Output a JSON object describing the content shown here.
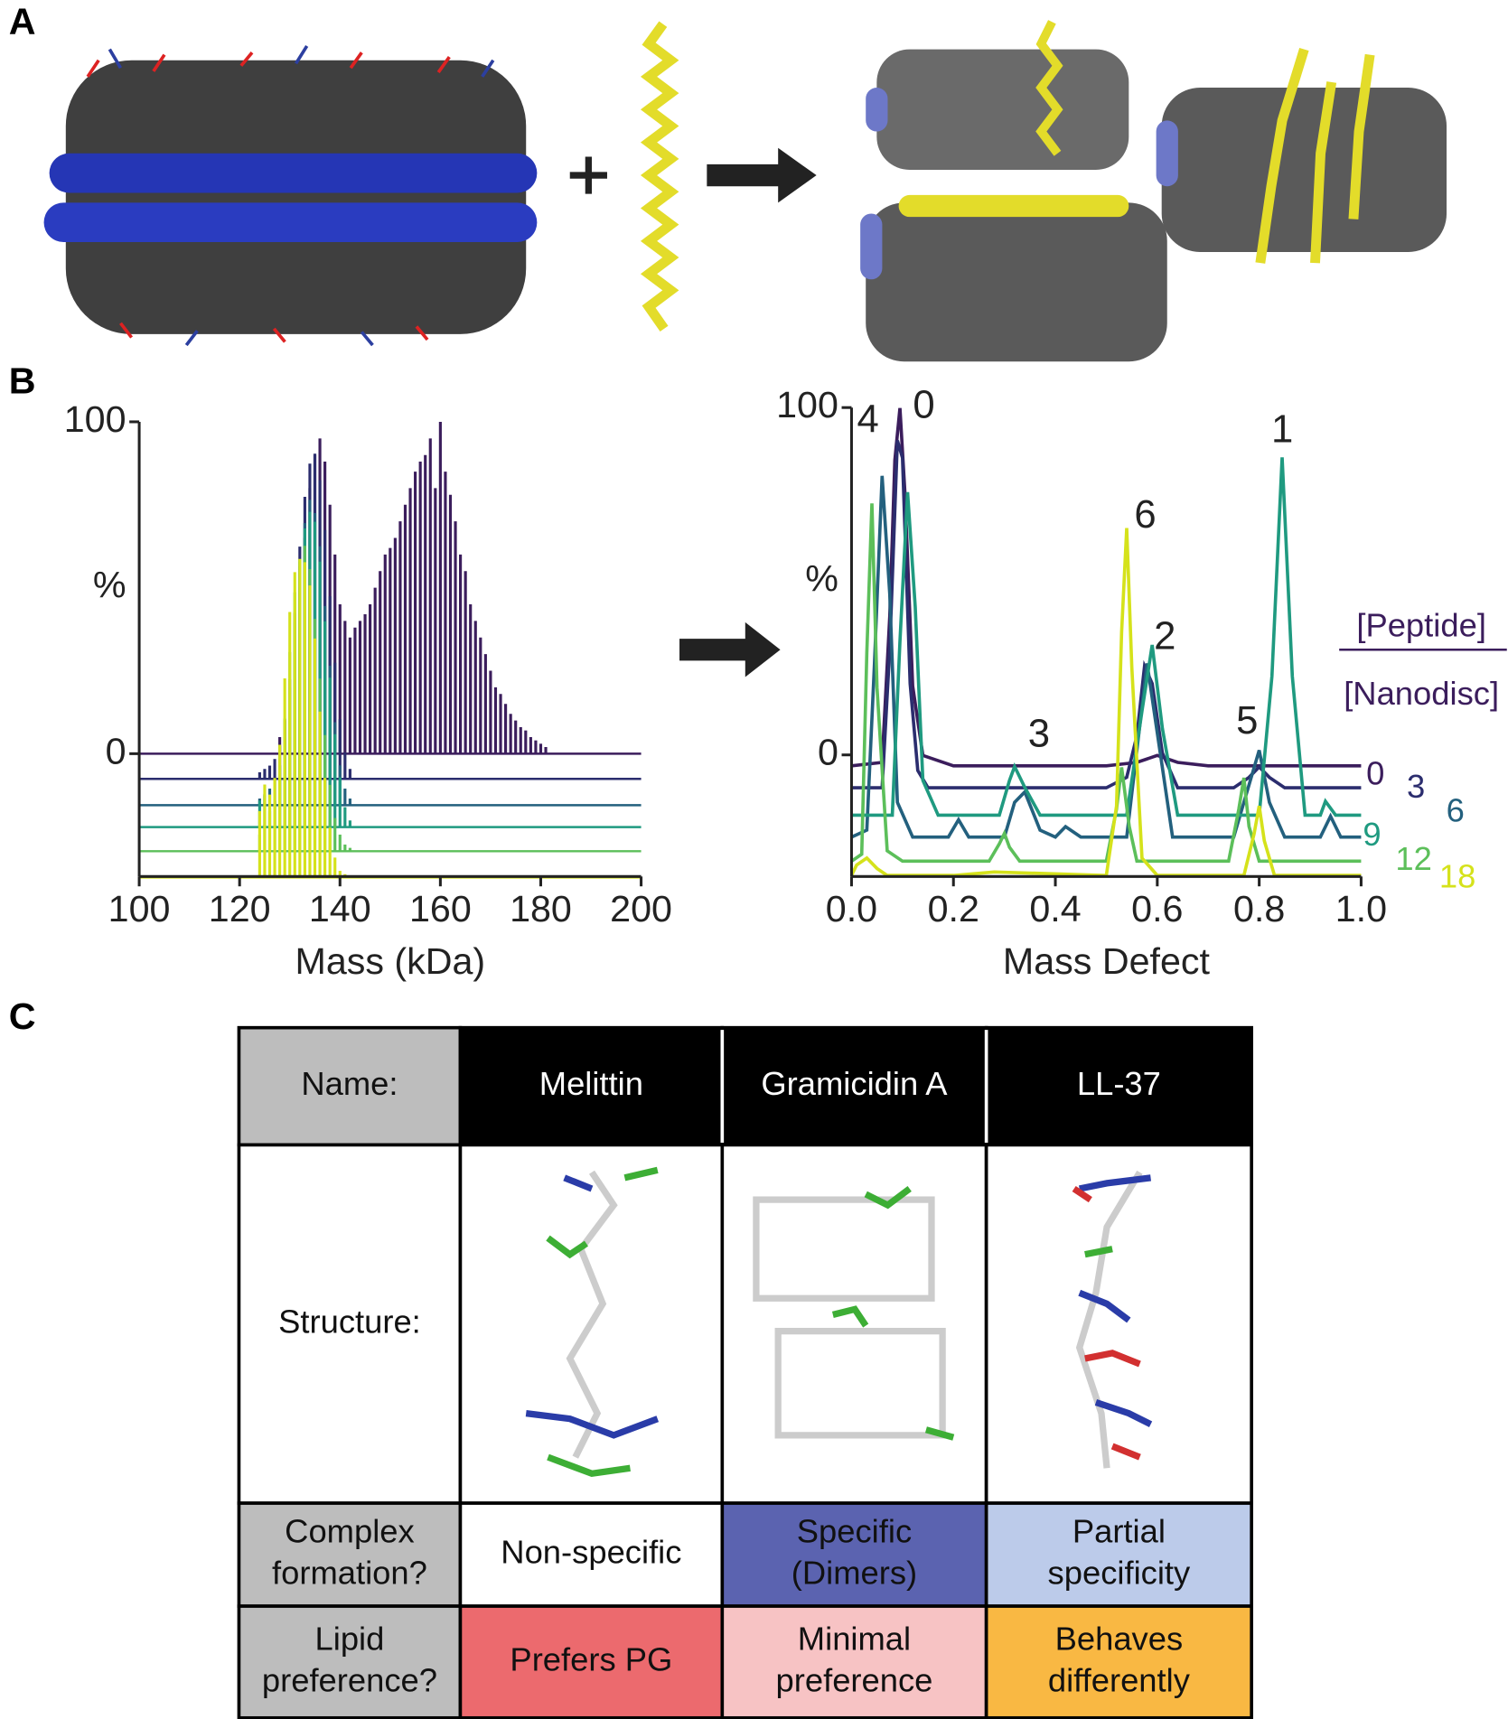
{
  "panel_labels": [
    "A",
    "B",
    "C"
  ],
  "chart_data": [
    {
      "type": "spectrum",
      "x_label": "Mass (kDa)",
      "y_label": "%",
      "xlim": [
        100,
        200
      ],
      "ylim": [
        -37,
        100
      ],
      "xticks": [
        100,
        120,
        140,
        160,
        180,
        200
      ],
      "yticks": [
        0,
        100
      ],
      "series": [
        {
          "color": "#3b1d5c",
          "x": [
            128,
            129,
            130,
            131,
            132,
            133,
            134,
            135,
            136,
            137,
            138,
            139,
            140,
            141,
            142,
            143,
            144,
            145,
            146,
            147,
            148,
            149,
            150,
            151,
            152,
            153,
            154,
            155,
            156,
            157,
            158,
            159,
            160,
            161,
            162,
            163,
            164,
            165,
            166,
            167,
            168,
            169,
            170,
            171,
            172,
            173,
            174,
            175,
            176,
            177,
            178,
            179,
            180,
            181
          ],
          "values": [
            5,
            10,
            20,
            35,
            50,
            65,
            80,
            90,
            95,
            88,
            75,
            60,
            45,
            40,
            35,
            38,
            40,
            42,
            45,
            50,
            55,
            60,
            62,
            65,
            70,
            75,
            80,
            85,
            88,
            90,
            95,
            80,
            100,
            85,
            78,
            70,
            60,
            55,
            45,
            40,
            35,
            30,
            25,
            20,
            18,
            15,
            12,
            10,
            8,
            7,
            5,
            4,
            3,
            2
          ]
        },
        {
          "color": "#2b2d6e",
          "x": [
            124,
            125,
            126,
            127,
            128,
            129,
            130,
            131,
            132,
            133,
            134,
            135,
            136,
            137,
            138,
            139,
            140,
            141,
            142
          ],
          "values": [
            2,
            3,
            4,
            6,
            10,
            18,
            30,
            50,
            70,
            85,
            95,
            98,
            90,
            75,
            55,
            35,
            18,
            8,
            3
          ]
        },
        {
          "color": "#23607e",
          "x": [
            124,
            125,
            126,
            127,
            128,
            129,
            130,
            131,
            132,
            133,
            134,
            135,
            136,
            137,
            138,
            139,
            140,
            141,
            142
          ],
          "values": [
            2,
            3,
            5,
            8,
            12,
            20,
            35,
            55,
            72,
            85,
            92,
            88,
            78,
            60,
            42,
            25,
            12,
            5,
            2
          ]
        },
        {
          "color": "#1f9a80",
          "x": [
            124,
            125,
            126,
            127,
            128,
            129,
            130,
            131,
            132,
            133,
            134,
            135,
            136,
            137,
            138,
            139,
            140,
            141,
            142
          ],
          "values": [
            8,
            10,
            6,
            8,
            15,
            25,
            40,
            60,
            80,
            90,
            95,
            92,
            80,
            62,
            45,
            28,
            15,
            6,
            2
          ]
        },
        {
          "color": "#5cbf5a",
          "x": [
            124,
            125,
            126,
            127,
            128,
            129,
            130,
            131,
            132,
            133,
            134,
            135,
            136,
            137,
            138,
            139,
            140,
            141,
            142
          ],
          "values": [
            5,
            8,
            12,
            15,
            25,
            40,
            60,
            78,
            88,
            92,
            85,
            70,
            52,
            35,
            20,
            10,
            5,
            2,
            1
          ]
        },
        {
          "color": "#d5e21b",
          "x": [
            124,
            125,
            126,
            127,
            128,
            129,
            130,
            131,
            132,
            133,
            134,
            135,
            136,
            137,
            138,
            139,
            140,
            141,
            142
          ],
          "values": [
            20,
            28,
            25,
            30,
            40,
            60,
            80,
            92,
            96,
            95,
            88,
            72,
            50,
            30,
            15,
            6,
            2,
            1,
            0
          ]
        }
      ]
    },
    {
      "type": "line",
      "x_label": "Mass Defect",
      "y_label": "%",
      "legend_title": [
        "[Peptide]",
        "[Nanodisc]"
      ],
      "xlim": [
        0,
        1
      ],
      "ylim": [
        -35,
        100
      ],
      "xticks": [
        {
          "value": 0,
          "label": "0.0"
        },
        {
          "value": 0.2,
          "label": "0.2"
        },
        {
          "value": 0.4,
          "label": "0.4"
        },
        {
          "value": 0.6,
          "label": "0.6"
        },
        {
          "value": 0.8,
          "label": "0.8"
        },
        {
          "value": 1,
          "label": "1.0"
        }
      ],
      "yticks": [
        0,
        100
      ],
      "annotations": [
        "0",
        "1",
        "2",
        "3",
        "4",
        "5",
        "6"
      ],
      "series": [
        {
          "name": "0",
          "color": "#3b1d5c",
          "x": [
            0,
            0.06,
            0.075,
            0.085,
            0.095,
            0.105,
            0.12,
            0.14,
            0.2,
            0.5,
            0.56,
            0.6,
            0.64,
            0.7,
            1
          ],
          "values": [
            0,
            1,
            43,
            88,
            103,
            78,
            23,
            3,
            0,
            0,
            1,
            3,
            1,
            0,
            0
          ]
        },
        {
          "name": "3",
          "color": "#2b2d6e",
          "x": [
            0,
            0.06,
            0.075,
            0.09,
            0.1,
            0.115,
            0.13,
            0.15,
            0.5,
            0.54,
            0.56,
            0.575,
            0.59,
            0.61,
            0.64,
            0.75,
            0.78,
            0.8,
            0.82,
            0.85,
            1
          ],
          "values": [
            0,
            0,
            40,
            100,
            95,
            30,
            5,
            0,
            0,
            3,
            15,
            35,
            30,
            10,
            0,
            0,
            3,
            6,
            3,
            0,
            0
          ]
        },
        {
          "name": "6",
          "color": "#23607e",
          "x": [
            0,
            0.03,
            0.045,
            0.06,
            0.075,
            0.09,
            0.12,
            0.19,
            0.21,
            0.23,
            0.3,
            0.32,
            0.34,
            0.37,
            0.4,
            0.42,
            0.45,
            0.54,
            0.56,
            0.58,
            0.6,
            0.63,
            0.75,
            0.78,
            0.8,
            0.82,
            0.85,
            0.92,
            0.94,
            0.96,
            1
          ],
          "values": [
            0,
            2,
            50,
            104,
            70,
            10,
            0,
            0,
            5,
            0,
            0,
            10,
            13,
            2,
            0,
            3,
            0,
            0,
            25,
            50,
            30,
            0,
            0,
            15,
            25,
            10,
            0,
            0,
            6,
            0,
            0
          ]
        },
        {
          "name": "9",
          "color": "#1f9a80",
          "x": [
            0,
            0.08,
            0.095,
            0.11,
            0.125,
            0.14,
            0.17,
            0.29,
            0.31,
            0.32,
            0.34,
            0.37,
            0.54,
            0.57,
            0.59,
            0.61,
            0.64,
            0.8,
            0.825,
            0.845,
            0.865,
            0.89,
            0.92,
            0.93,
            0.95,
            1
          ],
          "values": [
            0,
            0,
            50,
            93,
            60,
            10,
            0,
            0,
            10,
            14,
            8,
            0,
            0,
            30,
            49,
            25,
            0,
            0,
            40,
            103,
            40,
            0,
            0,
            4,
            0,
            0
          ]
        },
        {
          "name": "12",
          "color": "#5cbf5a",
          "x": [
            0,
            0.02,
            0.03,
            0.04,
            0.05,
            0.07,
            0.1,
            0.27,
            0.29,
            0.3,
            0.31,
            0.33,
            0.5,
            0.52,
            0.53,
            0.545,
            0.56,
            0.74,
            0.76,
            0.77,
            0.78,
            0.8,
            1
          ],
          "values": [
            0,
            2,
            60,
            103,
            50,
            3,
            0,
            0,
            5,
            8,
            4,
            0,
            0,
            15,
            27,
            10,
            0,
            0,
            15,
            24,
            10,
            0,
            0
          ]
        },
        {
          "name": "18",
          "color": "#d5e21b",
          "x": [
            0,
            0.01,
            0.03,
            0.05,
            0.07,
            0.2,
            0.28,
            0.5,
            0.52,
            0.53,
            0.54,
            0.55,
            0.57,
            0.6,
            0.77,
            0.79,
            0.8,
            0.81,
            0.83,
            1
          ],
          "values": [
            0,
            3,
            5,
            2,
            0,
            0,
            1,
            0,
            20,
            70,
            100,
            60,
            5,
            0,
            0,
            12,
            20,
            10,
            0,
            0
          ]
        }
      ]
    }
  ],
  "table": {
    "rows": [
      [
        "Name:",
        "Melittin",
        "Gramicidin A",
        "LL-37"
      ],
      [
        "Structure:"
      ],
      [
        [
          "Complex",
          "formation?"
        ],
        "Non-specific",
        [
          "Specific",
          "(Dimers)"
        ],
        [
          "Partial",
          "specificity"
        ]
      ],
      [
        [
          "Lipid",
          "preference?"
        ],
        "Prefers PG",
        [
          "Minimal",
          "preference"
        ],
        [
          "Behaves",
          "differently"
        ]
      ]
    ]
  }
}
